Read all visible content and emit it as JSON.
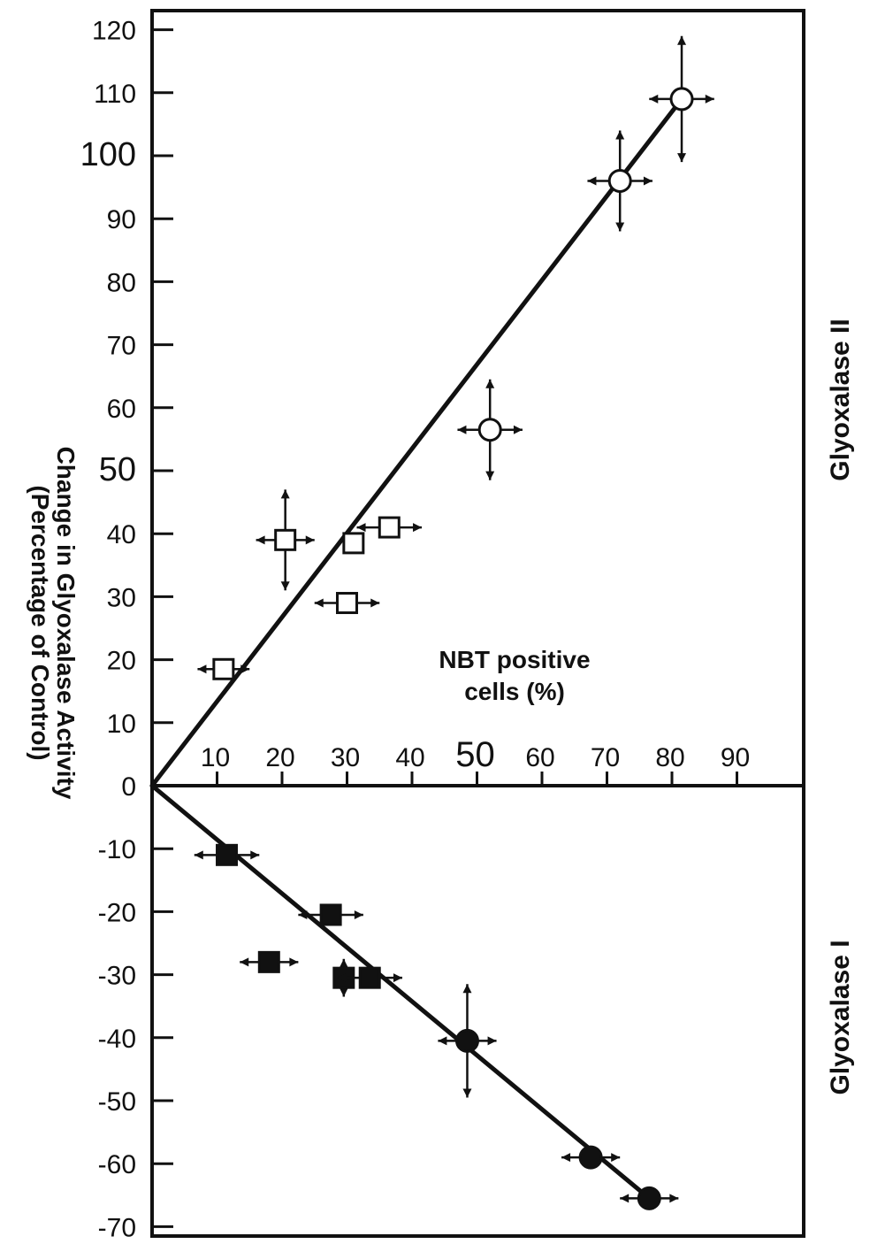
{
  "chart_data": {
    "type": "scatter",
    "ylabel_line1": "Change in Glyoxalase Activity",
    "ylabel_line2": "(Percentage of Control)",
    "xlabel_line1": "NBT positive",
    "xlabel_line2": "cells (%)",
    "upper_panel_label": "Glyoxalase II",
    "lower_panel_label": "Glyoxalase I",
    "xlim": [
      0,
      98
    ],
    "ylim": [
      -70,
      120
    ],
    "x_ticks": [
      "10",
      "20",
      "30",
      "40",
      "50",
      "60",
      "70",
      "80",
      "90"
    ],
    "y_ticks": [
      "120",
      "110",
      "100",
      "90",
      "80",
      "70",
      "60",
      "50",
      "40",
      "30",
      "20",
      "10",
      "0",
      "-10",
      "-20",
      "-30",
      "-40",
      "-50",
      "-60",
      "-70"
    ],
    "series": [
      {
        "marker": "open-square",
        "points": [
          {
            "x": 11,
            "y": 18.5,
            "xerr": 4,
            "yerr": 0
          },
          {
            "x": 20.5,
            "y": 39,
            "xerr": 4.5,
            "yerr": 8
          },
          {
            "x": 31,
            "y": 38.5,
            "xerr": 0,
            "yerr": 0
          },
          {
            "x": 30,
            "y": 29,
            "xerr": 5,
            "yerr": 0
          },
          {
            "x": 36.5,
            "y": 41,
            "xerr": 5,
            "yerr": 0
          }
        ]
      },
      {
        "marker": "open-circle",
        "points": [
          {
            "x": 52,
            "y": 56.5,
            "xerr": 5,
            "yerr": 8
          },
          {
            "x": 72,
            "y": 96,
            "xerr": 5,
            "yerr": 8
          },
          {
            "x": 81.5,
            "y": 109,
            "xerr": 5,
            "yerr": 10
          }
        ]
      },
      {
        "marker": "filled-square",
        "points": [
          {
            "x": 11.5,
            "y": -11,
            "xerr": 5,
            "yerr": 0
          },
          {
            "x": 18,
            "y": -28,
            "xerr": 4.5,
            "yerr": 0
          },
          {
            "x": 27.5,
            "y": -20.5,
            "xerr": 5,
            "yerr": 0
          },
          {
            "x": 29.5,
            "y": -30.5,
            "xerr": 0,
            "yerr": 3
          },
          {
            "x": 33.5,
            "y": -30.5,
            "xerr": 5,
            "yerr": 0
          }
        ]
      },
      {
        "marker": "filled-circle",
        "points": [
          {
            "x": 48.5,
            "y": -40.5,
            "xerr": 4.5,
            "yerr": 9
          },
          {
            "x": 67.5,
            "y": -59,
            "xerr": 4.5,
            "yerr": 0
          },
          {
            "x": 76.5,
            "y": -65.5,
            "xerr": 4.5,
            "yerr": 0
          }
        ]
      }
    ],
    "fit_lines": [
      {
        "from": [
          0,
          0
        ],
        "to": [
          81.5,
          109
        ]
      },
      {
        "from": [
          0,
          0
        ],
        "to": [
          76.5,
          -65.5
        ]
      }
    ]
  }
}
